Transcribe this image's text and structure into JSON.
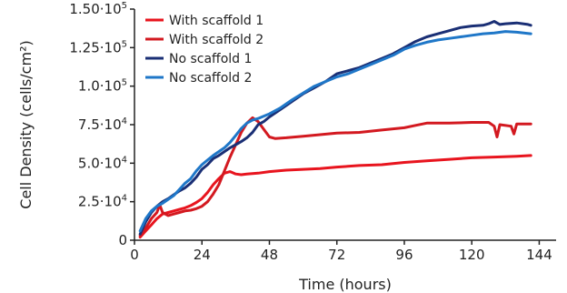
{
  "chart_data": {
    "type": "line",
    "title": "",
    "xlabel": "Time (hours)",
    "ylabel": "Cell Density (cells/cm²)",
    "xlim": [
      0,
      150
    ],
    "ylim": [
      0,
      150000
    ],
    "x_ticks": [
      {
        "value": 0,
        "label": "0"
      },
      {
        "value": 24,
        "label": "24"
      },
      {
        "value": 48,
        "label": "48"
      },
      {
        "value": 72,
        "label": "72"
      },
      {
        "value": 96,
        "label": "96"
      },
      {
        "value": 120,
        "label": "120"
      },
      {
        "value": 144,
        "label": "144"
      }
    ],
    "y_ticks": [
      {
        "value": 0,
        "label": "0"
      },
      {
        "value": 25000,
        "label": "2.5·10",
        "exp": "4"
      },
      {
        "value": 50000,
        "label": "5.0·10",
        "exp": "4"
      },
      {
        "value": 75000,
        "label": "7.5·10",
        "exp": "4"
      },
      {
        "value": 100000,
        "label": "1.0·10",
        "exp": "5"
      },
      {
        "value": 125000,
        "label": "1.25·10",
        "exp": "5"
      },
      {
        "value": 150000,
        "label": "1.50·10",
        "exp": "5"
      }
    ],
    "grid": false,
    "legend_position": "top-left",
    "series": [
      {
        "name": "With scaffold 1",
        "color": "#e8141e",
        "points": [
          [
            2,
            2000
          ],
          [
            4,
            6000
          ],
          [
            6,
            10000
          ],
          [
            8,
            14000
          ],
          [
            10,
            17000
          ],
          [
            12,
            18000
          ],
          [
            14,
            19000
          ],
          [
            16,
            20000
          ],
          [
            18,
            21000
          ],
          [
            20,
            22500
          ],
          [
            22,
            24500
          ],
          [
            24,
            27000
          ],
          [
            26,
            31000
          ],
          [
            28,
            36000
          ],
          [
            30,
            40000
          ],
          [
            32,
            43500
          ],
          [
            34,
            44500
          ],
          [
            36,
            43000
          ],
          [
            38,
            42500
          ],
          [
            40,
            43000
          ],
          [
            44,
            43500
          ],
          [
            48,
            44500
          ],
          [
            54,
            45500
          ],
          [
            60,
            46000
          ],
          [
            66,
            46500
          ],
          [
            72,
            47500
          ],
          [
            80,
            48500
          ],
          [
            88,
            49000
          ],
          [
            96,
            50500
          ],
          [
            104,
            51500
          ],
          [
            112,
            52500
          ],
          [
            120,
            53500
          ],
          [
            128,
            54000
          ],
          [
            136,
            54500
          ],
          [
            141,
            55000
          ]
        ]
      },
      {
        "name": "With scaffold 2",
        "color": "#d31920",
        "points": [
          [
            2,
            3000
          ],
          [
            4,
            8000
          ],
          [
            6,
            14000
          ],
          [
            8,
            18000
          ],
          [
            9,
            23000
          ],
          [
            10,
            18000
          ],
          [
            12,
            16000
          ],
          [
            14,
            17000
          ],
          [
            16,
            18000
          ],
          [
            18,
            19000
          ],
          [
            20,
            19500
          ],
          [
            22,
            20500
          ],
          [
            24,
            22000
          ],
          [
            26,
            25000
          ],
          [
            28,
            30000
          ],
          [
            30,
            36000
          ],
          [
            32,
            45000
          ],
          [
            34,
            54000
          ],
          [
            36,
            62000
          ],
          [
            38,
            70000
          ],
          [
            40,
            76000
          ],
          [
            42,
            79500
          ],
          [
            44,
            77000
          ],
          [
            46,
            72000
          ],
          [
            48,
            67000
          ],
          [
            50,
            66000
          ],
          [
            54,
            66500
          ],
          [
            60,
            67500
          ],
          [
            66,
            68500
          ],
          [
            72,
            69500
          ],
          [
            80,
            70000
          ],
          [
            88,
            71500
          ],
          [
            96,
            73000
          ],
          [
            100,
            74500
          ],
          [
            104,
            76000
          ],
          [
            112,
            76000
          ],
          [
            120,
            76500
          ],
          [
            126,
            76500
          ],
          [
            128,
            74000
          ],
          [
            129,
            67000
          ],
          [
            130,
            75000
          ],
          [
            134,
            74000
          ],
          [
            135,
            69000
          ],
          [
            136,
            75500
          ],
          [
            141,
            75500
          ]
        ]
      },
      {
        "name": "No scaffold 1",
        "color": "#1a2f75",
        "points": [
          [
            2,
            4000
          ],
          [
            4,
            12000
          ],
          [
            6,
            18000
          ],
          [
            8,
            22000
          ],
          [
            10,
            25000
          ],
          [
            12,
            27000
          ],
          [
            14,
            29500
          ],
          [
            16,
            32000
          ],
          [
            18,
            34000
          ],
          [
            20,
            37000
          ],
          [
            22,
            41000
          ],
          [
            24,
            46000
          ],
          [
            26,
            49000
          ],
          [
            28,
            53000
          ],
          [
            30,
            55000
          ],
          [
            32,
            57500
          ],
          [
            34,
            60000
          ],
          [
            36,
            62000
          ],
          [
            38,
            64000
          ],
          [
            40,
            66500
          ],
          [
            42,
            70000
          ],
          [
            44,
            75000
          ],
          [
            46,
            77000
          ],
          [
            48,
            80000
          ],
          [
            52,
            85000
          ],
          [
            56,
            90000
          ],
          [
            60,
            95000
          ],
          [
            64,
            99000
          ],
          [
            68,
            103000
          ],
          [
            72,
            108000
          ],
          [
            76,
            110000
          ],
          [
            80,
            112000
          ],
          [
            84,
            115000
          ],
          [
            88,
            118000
          ],
          [
            92,
            121000
          ],
          [
            96,
            125000
          ],
          [
            100,
            129000
          ],
          [
            104,
            132000
          ],
          [
            108,
            134000
          ],
          [
            112,
            136000
          ],
          [
            116,
            138000
          ],
          [
            120,
            139000
          ],
          [
            124,
            139500
          ],
          [
            126,
            140500
          ],
          [
            128,
            142000
          ],
          [
            130,
            140000
          ],
          [
            132,
            140500
          ],
          [
            136,
            141000
          ],
          [
            140,
            140000
          ],
          [
            141,
            139500
          ]
        ]
      },
      {
        "name": "No scaffold 2",
        "color": "#1f77c8",
        "points": [
          [
            2,
            6000
          ],
          [
            4,
            14000
          ],
          [
            6,
            19000
          ],
          [
            8,
            22000
          ],
          [
            10,
            24000
          ],
          [
            12,
            26500
          ],
          [
            14,
            29000
          ],
          [
            16,
            33000
          ],
          [
            18,
            37000
          ],
          [
            20,
            40000
          ],
          [
            22,
            45000
          ],
          [
            24,
            49000
          ],
          [
            26,
            52000
          ],
          [
            28,
            55000
          ],
          [
            30,
            57500
          ],
          [
            32,
            60000
          ],
          [
            34,
            63500
          ],
          [
            36,
            68000
          ],
          [
            38,
            72500
          ],
          [
            40,
            76000
          ],
          [
            42,
            78000
          ],
          [
            44,
            79000
          ],
          [
            48,
            82000
          ],
          [
            52,
            86000
          ],
          [
            56,
            91000
          ],
          [
            60,
            95500
          ],
          [
            64,
            100000
          ],
          [
            68,
            103000
          ],
          [
            72,
            106000
          ],
          [
            76,
            108000
          ],
          [
            80,
            111000
          ],
          [
            84,
            114000
          ],
          [
            88,
            117000
          ],
          [
            92,
            120000
          ],
          [
            96,
            124000
          ],
          [
            100,
            126500
          ],
          [
            104,
            128500
          ],
          [
            108,
            130000
          ],
          [
            112,
            131000
          ],
          [
            116,
            132000
          ],
          [
            120,
            133000
          ],
          [
            124,
            134000
          ],
          [
            128,
            134500
          ],
          [
            132,
            135500
          ],
          [
            136,
            135000
          ],
          [
            141,
            134000
          ]
        ]
      }
    ]
  }
}
